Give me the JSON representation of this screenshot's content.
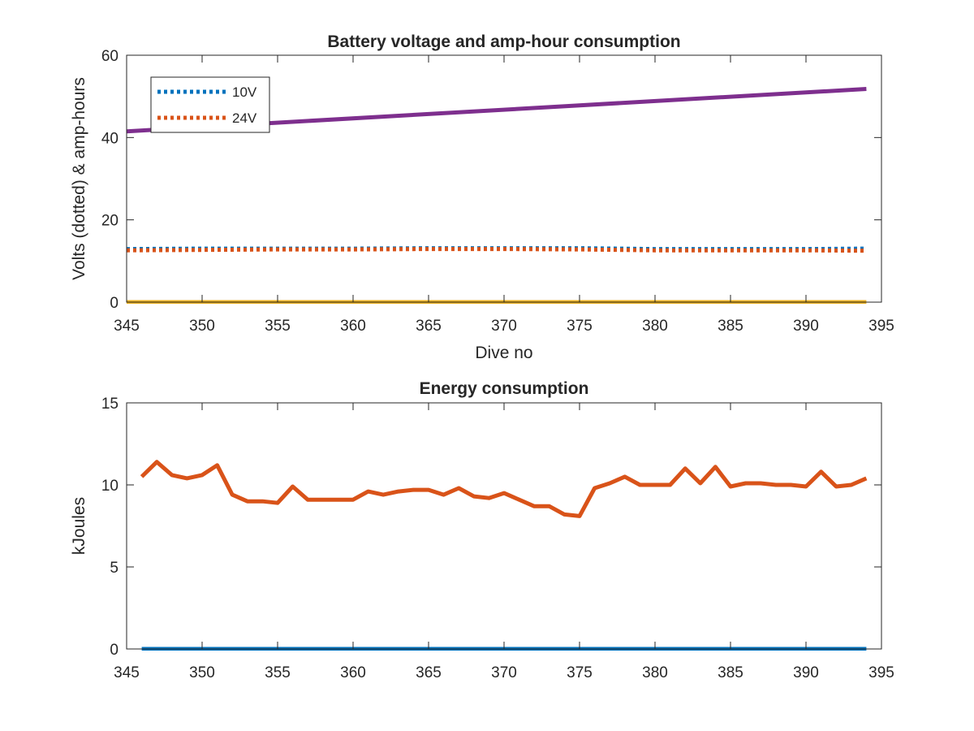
{
  "chart_data": [
    {
      "type": "line",
      "title": "Battery voltage and amp-hour consumption",
      "xlabel": "Dive no",
      "ylabel": "Volts (dotted) & amp-hours",
      "xlim": [
        345,
        395
      ],
      "ylim": [
        0,
        60
      ],
      "xticks": [
        "345",
        "350",
        "355",
        "360",
        "365",
        "370",
        "375",
        "380",
        "385",
        "390",
        "395"
      ],
      "yticks": [
        "0",
        "20",
        "40",
        "60"
      ],
      "legend": {
        "placement": "upper-left",
        "entries": [
          "10V",
          "24V"
        ]
      },
      "grid": false,
      "series": [
        {
          "name": "10V",
          "style": "dotted",
          "color": "#0072BD",
          "x": [
            345,
            350,
            355,
            360,
            365,
            370,
            375,
            380,
            385,
            390,
            394
          ],
          "y": [
            12.9,
            13.0,
            13.0,
            13.0,
            13.1,
            13.1,
            13.1,
            12.9,
            12.9,
            12.9,
            13.0
          ]
        },
        {
          "name": "24V",
          "style": "dotted",
          "color": "#D95319",
          "x": [
            345,
            350,
            355,
            360,
            365,
            370,
            375,
            380,
            385,
            390,
            394
          ],
          "y": [
            12.6,
            12.7,
            12.8,
            12.8,
            12.9,
            12.9,
            12.8,
            12.6,
            12.6,
            12.6,
            12.5
          ]
        },
        {
          "style": "solid",
          "color": "#7E2F8E",
          "x": [
            345,
            394
          ],
          "y": [
            41.5,
            51.8
          ]
        },
        {
          "style": "solid",
          "color": "#EDB120",
          "x": [
            345,
            394
          ],
          "y": [
            0,
            0
          ]
        }
      ]
    },
    {
      "type": "line",
      "title": "Energy consumption",
      "xlabel": "",
      "ylabel": "kJoules",
      "xlim": [
        345,
        395
      ],
      "ylim": [
        0,
        15
      ],
      "xticks": [
        "345",
        "350",
        "355",
        "360",
        "365",
        "370",
        "375",
        "380",
        "385",
        "390",
        "395"
      ],
      "yticks": [
        "0",
        "5",
        "10",
        "15"
      ],
      "grid": false,
      "series": [
        {
          "style": "solid",
          "color": "#D95319",
          "x": [
            346,
            347,
            348,
            349,
            350,
            351,
            352,
            353,
            354,
            355,
            356,
            357,
            358,
            359,
            360,
            361,
            362,
            363,
            364,
            365,
            366,
            367,
            368,
            369,
            370,
            371,
            372,
            373,
            374,
            375,
            376,
            377,
            378,
            379,
            380,
            381,
            382,
            383,
            384,
            385,
            386,
            387,
            388,
            389,
            390,
            391,
            392,
            393,
            394
          ],
          "y": [
            10.5,
            11.4,
            10.6,
            10.4,
            10.6,
            11.2,
            9.4,
            9.0,
            9.0,
            8.9,
            9.9,
            9.1,
            9.1,
            9.1,
            9.1,
            9.6,
            9.4,
            9.6,
            9.7,
            9.7,
            9.4,
            9.8,
            9.3,
            9.2,
            9.5,
            9.1,
            8.7,
            8.7,
            8.2,
            8.1,
            9.8,
            10.1,
            10.5,
            10.0,
            10.0,
            10.0,
            11.0,
            10.1,
            11.1,
            9.9,
            10.1,
            10.1,
            10.0,
            10.0,
            9.9,
            10.8,
            9.9,
            10.0,
            10.4
          ]
        },
        {
          "style": "solid",
          "color": "#0072BD",
          "x": [
            346,
            394
          ],
          "y": [
            0,
            0
          ]
        }
      ]
    }
  ]
}
